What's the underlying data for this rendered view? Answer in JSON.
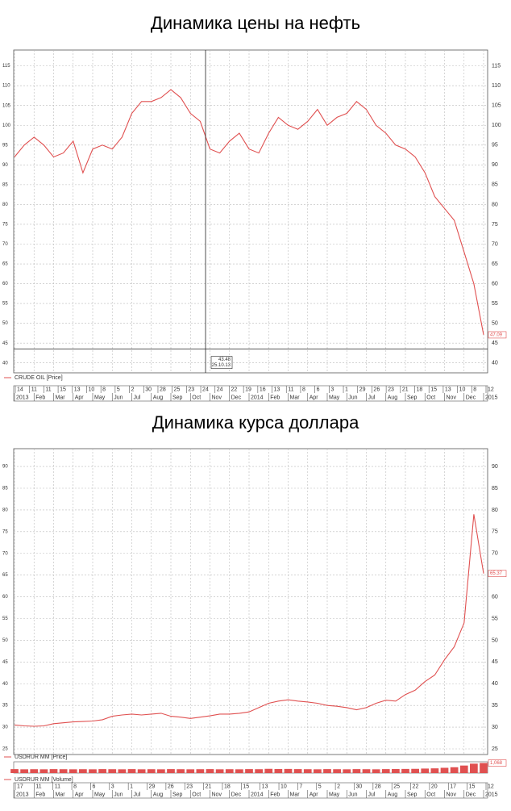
{
  "chart_data": [
    {
      "type": "line",
      "title": "Динамика цены на нефть",
      "categories": [
        "2013",
        null,
        "Feb",
        null,
        "Mar",
        null,
        "Apr",
        null,
        "May",
        null,
        "Jun",
        null,
        "Jul",
        null,
        "Aug",
        null,
        "Sep",
        null,
        "Oct",
        null,
        "Nov",
        null,
        "Dec",
        null,
        "2014",
        null,
        "Feb",
        null,
        "Mar",
        null,
        "Apr",
        null,
        "May",
        null,
        "Jun",
        null,
        "Jul",
        null,
        "Aug",
        null,
        "Sep",
        null,
        "Oct",
        null,
        "Nov",
        null,
        "Dec",
        null,
        "2015"
      ],
      "day_labels": [
        "14",
        "11",
        "11",
        "15",
        "13",
        "10",
        "8",
        "5",
        "2",
        "30",
        "28",
        "25",
        "23",
        "24",
        "24",
        "22",
        "19",
        "16",
        "13",
        "11",
        "8",
        "6",
        "3",
        "1",
        "29",
        "26",
        "23",
        "21",
        "18",
        "15",
        "13",
        "10",
        "8",
        "12"
      ],
      "series": [
        {
          "name": "CRUDE OIL [Price]",
          "color": "#e05050",
          "values": [
            92,
            95,
            97,
            95,
            92,
            93,
            96,
            88,
            94,
            95,
            94,
            97,
            103,
            106,
            106,
            107,
            109,
            107,
            103,
            101,
            94,
            93,
            96,
            98,
            94,
            93,
            98,
            102,
            100,
            99,
            101,
            104,
            100,
            102,
            103,
            106,
            104,
            100,
            98,
            95,
            94,
            92,
            88,
            82,
            79,
            76,
            68,
            60,
            47.09
          ]
        }
      ],
      "ylim": [
        37.5,
        119
      ],
      "yticks": [
        40,
        45,
        50,
        55,
        60,
        65,
        70,
        75,
        80,
        85,
        90,
        95,
        100,
        105,
        110,
        115
      ],
      "grid": true,
      "crosshair": {
        "date": "25.10.13",
        "value": 43.48
      }
    },
    {
      "type": "line",
      "title": "Динамика курса доллара",
      "categories": [
        "2013",
        null,
        "Feb",
        null,
        "Mar",
        null,
        "Apr",
        null,
        "May",
        null,
        "Jun",
        null,
        "Jul",
        null,
        "Aug",
        null,
        "Sep",
        null,
        "Oct",
        null,
        "Nov",
        null,
        "Dec",
        null,
        "2014",
        null,
        "Feb",
        null,
        "Mar",
        null,
        "Apr",
        null,
        "May",
        null,
        "Jun",
        null,
        "Jul",
        null,
        "Aug",
        null,
        "Sep",
        null,
        "Oct",
        null,
        "Nov",
        null,
        "Dec",
        null,
        "2015"
      ],
      "day_labels": [
        "17",
        "11",
        "11",
        "8",
        "6",
        "3",
        "1",
        "29",
        "26",
        "23",
        "21",
        "18",
        "15",
        "13",
        "10",
        "7",
        "5",
        "2",
        "30",
        "28",
        "25",
        "22",
        "20",
        "17",
        "15",
        "12"
      ],
      "series": [
        {
          "name": "USDRUR MM [Price]",
          "color": "#e05050",
          "values": [
            30.5,
            30.3,
            30.2,
            30.3,
            30.8,
            31,
            31.2,
            31.3,
            31.4,
            31.7,
            32.5,
            32.8,
            33,
            32.8,
            33,
            33.2,
            32.5,
            32.3,
            32,
            32.3,
            32.6,
            33,
            33,
            33.2,
            33.5,
            34.5,
            35.5,
            36,
            36.3,
            36,
            35.8,
            35.5,
            35,
            34.8,
            34.5,
            34,
            34.5,
            35.5,
            36.2,
            36,
            37.5,
            38.5,
            40.5,
            42,
            45.5,
            48.5,
            54,
            79,
            65.37
          ]
        },
        {
          "name": "USDRUR MM [Volume]",
          "color": "#e05050",
          "values": [
            420,
            400,
            410,
            400,
            420,
            410,
            400,
            410,
            400,
            420,
            410,
            400,
            420,
            400,
            410,
            400,
            420,
            410,
            400,
            410,
            420,
            400,
            410,
            400,
            420,
            410,
            450,
            430,
            440,
            420,
            410,
            400,
            420,
            410,
            400,
            420,
            410,
            400,
            420,
            430,
            440,
            450,
            480,
            500,
            560,
            620,
            800,
            1000,
            1068
          ]
        }
      ],
      "ylim": [
        23.7,
        94.1
      ],
      "yticks": [
        25,
        30,
        35,
        40,
        45,
        50,
        55,
        60,
        65,
        70,
        75,
        80,
        85,
        90
      ],
      "grid": true,
      "vlim": [
        0,
        1200
      ],
      "current_volume": {
        "value": 1068,
        "label": "1,068"
      }
    }
  ]
}
